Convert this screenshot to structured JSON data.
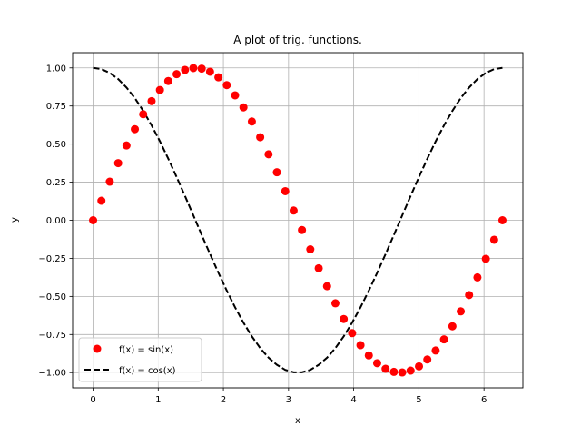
{
  "chart_data": {
    "type": "line",
    "title": "A plot of trig. functions.",
    "xlabel": "x",
    "ylabel": "y",
    "xlim": [
      -0.314,
      6.597
    ],
    "ylim": [
      -1.1,
      1.1
    ],
    "xticks": [
      0,
      1,
      2,
      3,
      4,
      5,
      6
    ],
    "xtick_labels": [
      "0",
      "1",
      "2",
      "3",
      "4",
      "5",
      "6"
    ],
    "yticks": [
      -1.0,
      -0.75,
      -0.5,
      -0.25,
      0.0,
      0.25,
      0.5,
      0.75,
      1.0
    ],
    "ytick_labels": [
      "−1.00",
      "−0.75",
      "−0.50",
      "−0.25",
      "0.00",
      "0.25",
      "0.50",
      "0.75",
      "1.00"
    ],
    "grid": true,
    "legend_position": "lower-left",
    "series": [
      {
        "name": "f(x) = sin(x)",
        "style": "markers",
        "color": "#ff0000",
        "x": [
          0.0,
          0.128,
          0.256,
          0.385,
          0.513,
          0.641,
          0.769,
          0.898,
          1.026,
          1.154,
          1.282,
          1.411,
          1.539,
          1.667,
          1.795,
          1.924,
          2.052,
          2.18,
          2.308,
          2.437,
          2.565,
          2.693,
          2.821,
          2.95,
          3.078,
          3.206,
          3.334,
          3.463,
          3.591,
          3.719,
          3.847,
          3.976,
          4.104,
          4.232,
          4.36,
          4.489,
          4.617,
          4.745,
          4.873,
          5.002,
          5.13,
          5.258,
          5.386,
          5.515,
          5.643,
          5.771,
          5.899,
          6.028,
          6.156,
          6.283
        ],
        "y": [
          0.0,
          0.128,
          0.253,
          0.375,
          0.491,
          0.598,
          0.696,
          0.782,
          0.855,
          0.914,
          0.959,
          0.987,
          0.999,
          0.995,
          0.975,
          0.938,
          0.887,
          0.82,
          0.741,
          0.648,
          0.545,
          0.433,
          0.315,
          0.191,
          0.064,
          -0.064,
          -0.191,
          -0.315,
          -0.433,
          -0.545,
          -0.648,
          -0.741,
          -0.82,
          -0.887,
          -0.938,
          -0.975,
          -0.995,
          -0.999,
          -0.987,
          -0.959,
          -0.914,
          -0.855,
          -0.782,
          -0.696,
          -0.598,
          -0.491,
          -0.375,
          -0.253,
          -0.128,
          0.0
        ]
      },
      {
        "name": "f(x) = cos(x)",
        "style": "dashed-line",
        "color": "#000000",
        "x": [
          0.0,
          0.128,
          0.256,
          0.385,
          0.513,
          0.641,
          0.769,
          0.898,
          1.026,
          1.154,
          1.282,
          1.411,
          1.539,
          1.667,
          1.795,
          1.924,
          2.052,
          2.18,
          2.308,
          2.437,
          2.565,
          2.693,
          2.821,
          2.95,
          3.078,
          3.206,
          3.334,
          3.463,
          3.591,
          3.719,
          3.847,
          3.976,
          4.104,
          4.232,
          4.36,
          4.489,
          4.617,
          4.745,
          4.873,
          5.002,
          5.13,
          5.258,
          5.386,
          5.515,
          5.643,
          5.771,
          5.899,
          6.028,
          6.156,
          6.283
        ],
        "y": [
          1.0,
          0.992,
          0.967,
          0.927,
          0.871,
          0.802,
          0.718,
          0.623,
          0.518,
          0.404,
          0.284,
          0.159,
          0.032,
          -0.096,
          -0.222,
          -0.345,
          -0.462,
          -0.572,
          -0.672,
          -0.762,
          -0.839,
          -0.902,
          -0.949,
          -0.982,
          -0.998,
          -0.998,
          -0.982,
          -0.949,
          -0.902,
          -0.839,
          -0.762,
          -0.672,
          -0.572,
          -0.462,
          -0.345,
          -0.222,
          -0.096,
          0.032,
          0.159,
          0.284,
          0.404,
          0.518,
          0.623,
          0.718,
          0.802,
          0.871,
          0.927,
          0.967,
          0.992,
          1.0
        ]
      }
    ]
  }
}
